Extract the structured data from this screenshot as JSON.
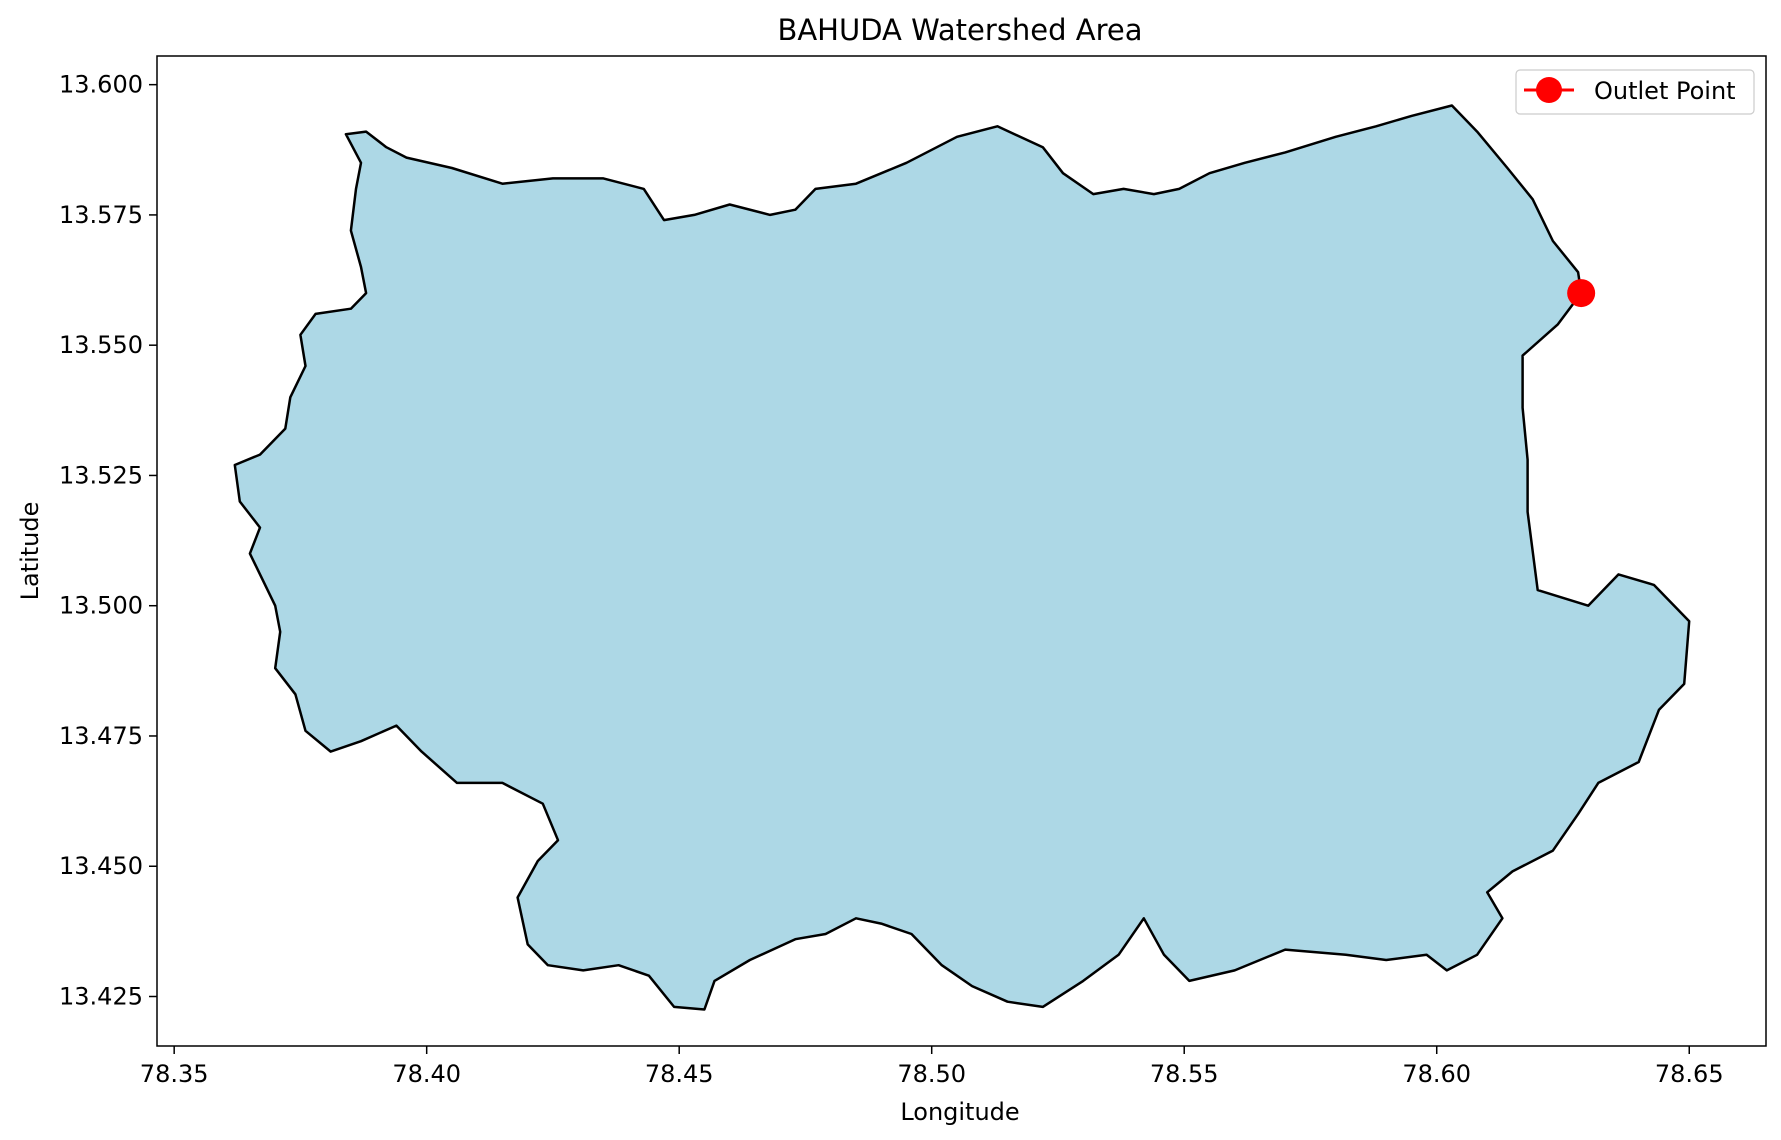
{
  "chart_data": {
    "type": "map",
    "title": "BAHUDA Watershed Area",
    "xlabel": "Longitude",
    "ylabel": "Latitude",
    "xlim": [
      78.3466,
      78.6652
    ],
    "ylim": [
      13.4155,
      13.6055
    ],
    "xticks": [
      78.35,
      78.4,
      78.45,
      78.5,
      78.55,
      78.6,
      78.65
    ],
    "xtick_labels": [
      "78.35",
      "78.40",
      "78.45",
      "78.50",
      "78.55",
      "78.60",
      "78.65"
    ],
    "yticks": [
      13.425,
      13.45,
      13.475,
      13.5,
      13.525,
      13.55,
      13.575,
      13.6
    ],
    "ytick_labels": [
      "13.425",
      "13.450",
      "13.475",
      "13.500",
      "13.525",
      "13.550",
      "13.575",
      "13.600"
    ],
    "grid": false,
    "legend": {
      "placement": "top-right",
      "entries": [
        {
          "label": "Outlet Point",
          "color": "#ff0000",
          "marker": "circle"
        }
      ]
    },
    "watershed": {
      "fill": "#add8e6",
      "edge": "#000000",
      "boundary": [
        [
          78.384,
          13.5905
        ],
        [
          78.388,
          13.591
        ],
        [
          78.392,
          13.588
        ],
        [
          78.396,
          13.586
        ],
        [
          78.405,
          13.584
        ],
        [
          78.415,
          13.581
        ],
        [
          78.425,
          13.582
        ],
        [
          78.435,
          13.582
        ],
        [
          78.443,
          13.58
        ],
        [
          78.447,
          13.574
        ],
        [
          78.453,
          13.575
        ],
        [
          78.46,
          13.577
        ],
        [
          78.468,
          13.575
        ],
        [
          78.473,
          13.576
        ],
        [
          78.477,
          13.58
        ],
        [
          78.485,
          13.581
        ],
        [
          78.495,
          13.585
        ],
        [
          78.505,
          13.59
        ],
        [
          78.513,
          13.592
        ],
        [
          78.522,
          13.588
        ],
        [
          78.526,
          13.583
        ],
        [
          78.532,
          13.579
        ],
        [
          78.538,
          13.58
        ],
        [
          78.544,
          13.579
        ],
        [
          78.549,
          13.58
        ],
        [
          78.555,
          13.583
        ],
        [
          78.562,
          13.585
        ],
        [
          78.57,
          13.587
        ],
        [
          78.58,
          13.59
        ],
        [
          78.588,
          13.592
        ],
        [
          78.595,
          13.594
        ],
        [
          78.603,
          13.596
        ],
        [
          78.608,
          13.591
        ],
        [
          78.614,
          13.584
        ],
        [
          78.619,
          13.578
        ],
        [
          78.623,
          13.57
        ],
        [
          78.628,
          13.564
        ],
        [
          78.6286,
          13.56
        ],
        [
          78.624,
          13.554
        ],
        [
          78.617,
          13.548
        ],
        [
          78.617,
          13.538
        ],
        [
          78.618,
          13.528
        ],
        [
          78.618,
          13.518
        ],
        [
          78.62,
          13.503
        ],
        [
          78.63,
          13.5
        ],
        [
          78.636,
          13.506
        ],
        [
          78.643,
          13.504
        ],
        [
          78.65,
          13.497
        ],
        [
          78.649,
          13.485
        ],
        [
          78.644,
          13.48
        ],
        [
          78.64,
          13.47
        ],
        [
          78.632,
          13.466
        ],
        [
          78.628,
          13.46
        ],
        [
          78.623,
          13.453
        ],
        [
          78.615,
          13.449
        ],
        [
          78.61,
          13.445
        ],
        [
          78.613,
          13.44
        ],
        [
          78.608,
          13.433
        ],
        [
          78.602,
          13.43
        ],
        [
          78.598,
          13.433
        ],
        [
          78.59,
          13.432
        ],
        [
          78.582,
          13.433
        ],
        [
          78.57,
          13.434
        ],
        [
          78.56,
          13.43
        ],
        [
          78.551,
          13.428
        ],
        [
          78.546,
          13.433
        ],
        [
          78.542,
          13.44
        ],
        [
          78.537,
          13.433
        ],
        [
          78.53,
          13.428
        ],
        [
          78.522,
          13.423
        ],
        [
          78.515,
          13.424
        ],
        [
          78.508,
          13.427
        ],
        [
          78.502,
          13.431
        ],
        [
          78.496,
          13.437
        ],
        [
          78.49,
          13.439
        ],
        [
          78.485,
          13.44
        ],
        [
          78.479,
          13.437
        ],
        [
          78.473,
          13.436
        ],
        [
          78.464,
          13.432
        ],
        [
          78.457,
          13.428
        ],
        [
          78.455,
          13.4225
        ],
        [
          78.449,
          13.423
        ],
        [
          78.444,
          13.429
        ],
        [
          78.438,
          13.431
        ],
        [
          78.431,
          13.43
        ],
        [
          78.424,
          13.431
        ],
        [
          78.42,
          13.435
        ],
        [
          78.418,
          13.444
        ],
        [
          78.422,
          13.451
        ],
        [
          78.426,
          13.455
        ],
        [
          78.423,
          13.462
        ],
        [
          78.415,
          13.466
        ],
        [
          78.406,
          13.466
        ],
        [
          78.399,
          13.472
        ],
        [
          78.394,
          13.477
        ],
        [
          78.387,
          13.474
        ],
        [
          78.381,
          13.472
        ],
        [
          78.376,
          13.476
        ],
        [
          78.374,
          13.483
        ],
        [
          78.37,
          13.488
        ],
        [
          78.371,
          13.495
        ],
        [
          78.37,
          13.5
        ],
        [
          78.365,
          13.51
        ],
        [
          78.367,
          13.515
        ],
        [
          78.363,
          13.52
        ],
        [
          78.362,
          13.527
        ],
        [
          78.367,
          13.529
        ],
        [
          78.372,
          13.534
        ],
        [
          78.373,
          13.54
        ],
        [
          78.376,
          13.546
        ],
        [
          78.375,
          13.552
        ],
        [
          78.378,
          13.556
        ],
        [
          78.385,
          13.557
        ],
        [
          78.388,
          13.56
        ],
        [
          78.387,
          13.565
        ],
        [
          78.385,
          13.572
        ],
        [
          78.386,
          13.58
        ],
        [
          78.387,
          13.585
        ],
        [
          78.384,
          13.5905
        ]
      ]
    },
    "outlet_point": {
      "label": "Outlet Point",
      "lon": 78.6286,
      "lat": 13.56,
      "color": "#ff0000"
    }
  }
}
